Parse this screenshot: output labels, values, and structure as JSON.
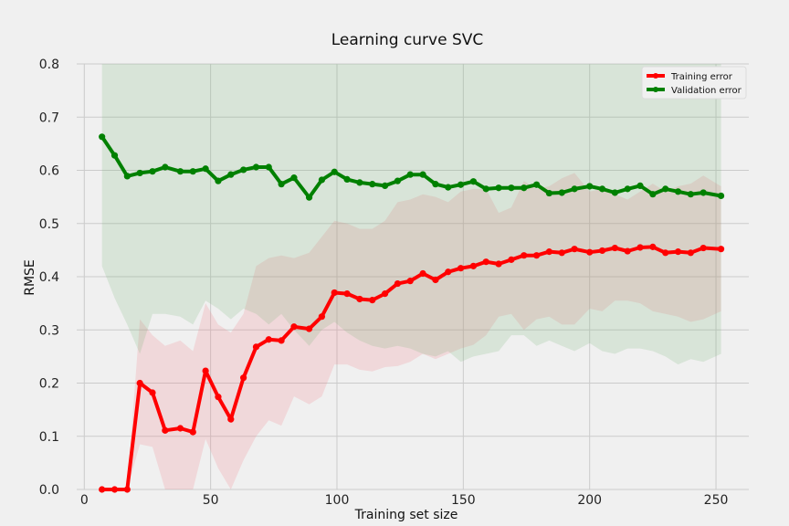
{
  "chart_data": {
    "type": "line",
    "title": "Learning curve SVC",
    "xlabel": "Training set size",
    "ylabel": "RMSE",
    "xlim": [
      -3,
      263
    ],
    "ylim": [
      0,
      0.8
    ],
    "xticks": [
      0,
      50,
      100,
      150,
      200,
      250
    ],
    "yticks": [
      0.0,
      0.1,
      0.2,
      0.3,
      0.4,
      0.5,
      0.6,
      0.7,
      0.8
    ],
    "xtick_labels": [
      "0",
      "50",
      "100",
      "150",
      "200",
      "250"
    ],
    "ytick_labels": [
      "0.0",
      "0.1",
      "0.2",
      "0.3",
      "0.4",
      "0.5",
      "0.6",
      "0.7",
      "0.8"
    ],
    "grid": true,
    "legend_position": "top-right",
    "x": [
      7,
      12,
      17,
      22,
      27,
      32,
      38,
      43,
      48,
      53,
      58,
      63,
      68,
      73,
      78,
      83,
      89,
      94,
      99,
      104,
      109,
      114,
      119,
      124,
      129,
      134,
      139,
      144,
      149,
      154,
      159,
      164,
      169,
      174,
      179,
      184,
      189,
      194,
      200,
      205,
      210,
      215,
      220,
      225,
      230,
      235,
      240,
      245,
      252
    ],
    "series": [
      {
        "name": "Training error",
        "color": "#ff0000",
        "band_color": "rgba(240,120,130,0.2)",
        "values": [
          0.0,
          0.0,
          0.0,
          0.2,
          0.182,
          0.111,
          0.115,
          0.108,
          0.223,
          0.174,
          0.132,
          0.21,
          0.268,
          0.282,
          0.28,
          0.306,
          0.302,
          0.325,
          0.37,
          0.368,
          0.358,
          0.356,
          0.368,
          0.387,
          0.392,
          0.406,
          0.394,
          0.409,
          0.416,
          0.42,
          0.428,
          0.424,
          0.432,
          0.44,
          0.44,
          0.447,
          0.445,
          0.452,
          0.446,
          0.449,
          0.454,
          0.448,
          0.455,
          0.456,
          0.445,
          0.447,
          0.445,
          0.454,
          0.452
        ],
        "lower": [
          0.0,
          0.0,
          0.0,
          0.085,
          0.08,
          0.0,
          0.0,
          0.0,
          0.095,
          0.04,
          0.0,
          0.055,
          0.1,
          0.13,
          0.12,
          0.175,
          0.16,
          0.175,
          0.235,
          0.235,
          0.225,
          0.222,
          0.23,
          0.232,
          0.24,
          0.255,
          0.245,
          0.255,
          0.265,
          0.272,
          0.29,
          0.325,
          0.33,
          0.3,
          0.32,
          0.325,
          0.31,
          0.31,
          0.34,
          0.335,
          0.355,
          0.355,
          0.35,
          0.335,
          0.33,
          0.325,
          0.315,
          0.32,
          0.335
        ],
        "upper": [
          0.0,
          0.0,
          0.0,
          0.32,
          0.29,
          0.27,
          0.28,
          0.26,
          0.35,
          0.31,
          0.295,
          0.33,
          0.42,
          0.435,
          0.44,
          0.435,
          0.445,
          0.475,
          0.505,
          0.5,
          0.49,
          0.49,
          0.505,
          0.54,
          0.545,
          0.555,
          0.55,
          0.54,
          0.56,
          0.565,
          0.565,
          0.52,
          0.53,
          0.58,
          0.565,
          0.57,
          0.585,
          0.595,
          0.56,
          0.565,
          0.555,
          0.545,
          0.56,
          0.575,
          0.56,
          0.57,
          0.575,
          0.59,
          0.57
        ]
      },
      {
        "name": "Validation error",
        "color": "#008000",
        "band_color": "rgba(120,180,120,0.2)",
        "values": [
          0.663,
          0.628,
          0.589,
          0.595,
          0.598,
          0.606,
          0.598,
          0.598,
          0.603,
          0.58,
          0.592,
          0.601,
          0.606,
          0.606,
          0.574,
          0.586,
          0.549,
          0.582,
          0.597,
          0.583,
          0.577,
          0.574,
          0.571,
          0.58,
          0.592,
          0.592,
          0.574,
          0.568,
          0.573,
          0.579,
          0.565,
          0.567,
          0.567,
          0.567,
          0.573,
          0.557,
          0.558,
          0.565,
          0.57,
          0.565,
          0.558,
          0.565,
          0.571,
          0.555,
          0.565,
          0.56,
          0.555,
          0.558,
          0.552
        ],
        "lower": [
          0.42,
          0.36,
          0.31,
          0.255,
          0.33,
          0.33,
          0.325,
          0.31,
          0.355,
          0.34,
          0.32,
          0.34,
          0.33,
          0.31,
          0.33,
          0.3,
          0.27,
          0.3,
          0.315,
          0.295,
          0.28,
          0.27,
          0.265,
          0.27,
          0.265,
          0.255,
          0.25,
          0.26,
          0.24,
          0.25,
          0.255,
          0.26,
          0.29,
          0.29,
          0.27,
          0.28,
          0.27,
          0.26,
          0.275,
          0.26,
          0.255,
          0.265,
          0.265,
          0.26,
          0.25,
          0.235,
          0.245,
          0.24,
          0.255
        ],
        "upper": [
          0.8,
          0.8,
          0.8,
          0.8,
          0.8,
          0.8,
          0.8,
          0.8,
          0.8,
          0.8,
          0.8,
          0.8,
          0.8,
          0.8,
          0.8,
          0.8,
          0.8,
          0.8,
          0.8,
          0.8,
          0.8,
          0.8,
          0.8,
          0.8,
          0.8,
          0.8,
          0.8,
          0.8,
          0.8,
          0.8,
          0.8,
          0.8,
          0.8,
          0.8,
          0.8,
          0.8,
          0.8,
          0.8,
          0.8,
          0.8,
          0.8,
          0.8,
          0.8,
          0.8,
          0.8,
          0.8,
          0.8,
          0.8,
          0.8
        ]
      }
    ]
  }
}
